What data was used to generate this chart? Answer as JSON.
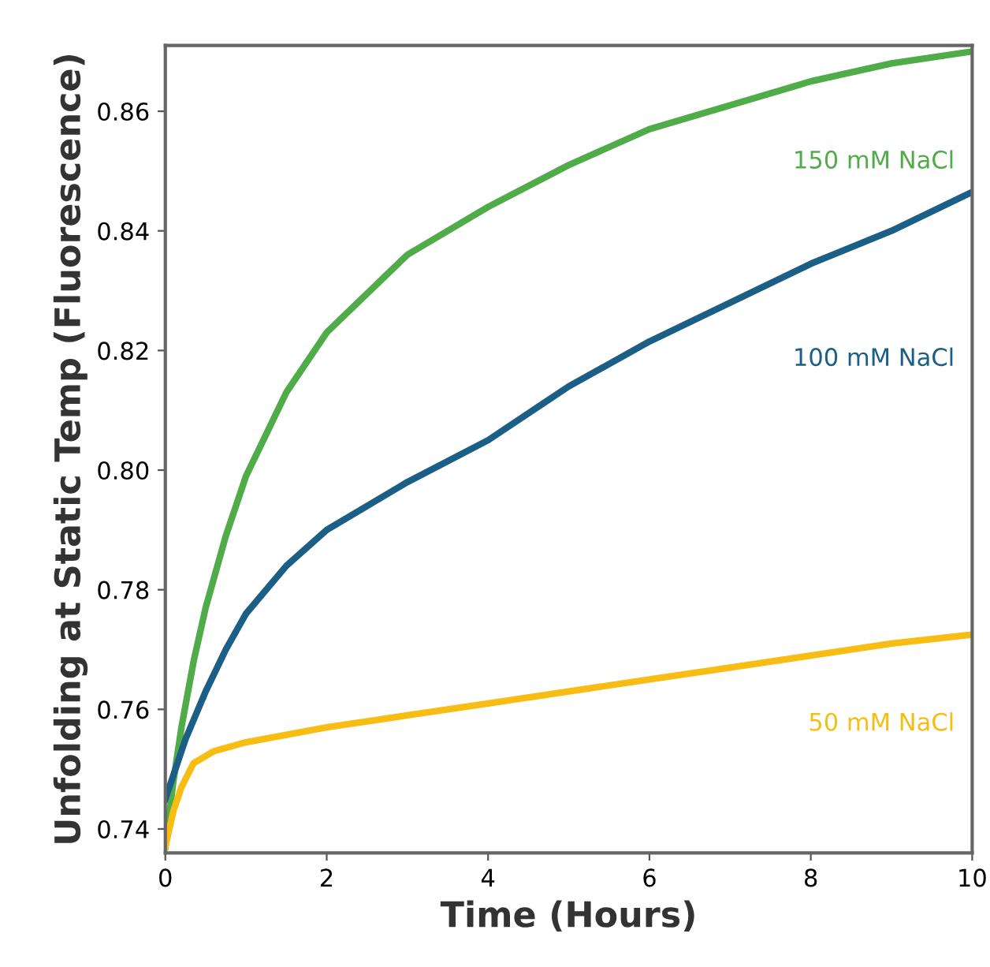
{
  "chart_data": {
    "type": "line",
    "xlabel": "Time (Hours)",
    "ylabel": "Unfolding at Static Temp (Fluorescence)",
    "xlim": [
      0,
      10
    ],
    "ylim": [
      0.736,
      0.871
    ],
    "xticks": [
      0,
      2,
      4,
      6,
      8,
      10
    ],
    "yticks": [
      {
        "value": 0.74,
        "label": "0.74"
      },
      {
        "value": 0.76,
        "label": "0.76"
      },
      {
        "value": 0.78,
        "label": "0.78"
      },
      {
        "value": 0.8,
        "label": "0.80"
      },
      {
        "value": 0.82,
        "label": "0.82"
      },
      {
        "value": 0.84,
        "label": "0.84"
      },
      {
        "value": 0.86,
        "label": "0.86"
      }
    ],
    "grid": false,
    "legend": false,
    "marker": "none",
    "line_style": "solid",
    "series": [
      {
        "name": "150 mM NaCl",
        "color": "#4fac48",
        "x": [
          0,
          0.1,
          0.2,
          0.35,
          0.5,
          0.75,
          1,
          1.5,
          2,
          3,
          4,
          5,
          6,
          7,
          8,
          9,
          10
        ],
        "values": [
          0.737,
          0.748,
          0.757,
          0.768,
          0.777,
          0.789,
          0.799,
          0.813,
          0.823,
          0.836,
          0.844,
          0.851,
          0.857,
          0.861,
          0.865,
          0.868,
          0.87
        ]
      },
      {
        "name": "100 mM NaCl",
        "color": "#1b5e86",
        "x": [
          0,
          0.1,
          0.25,
          0.5,
          0.75,
          1,
          1.5,
          2,
          3,
          4,
          5,
          6,
          7,
          8,
          9,
          10
        ],
        "values": [
          0.745,
          0.749,
          0.755,
          0.763,
          0.77,
          0.776,
          0.784,
          0.79,
          0.798,
          0.805,
          0.814,
          0.8215,
          0.828,
          0.8345,
          0.84,
          0.8465
        ]
      },
      {
        "name": "50 mM NaCl",
        "color": "#f7bd12",
        "x": [
          0,
          0.1,
          0.2,
          0.35,
          0.6,
          1,
          2,
          3,
          4,
          5,
          6,
          7,
          8,
          9,
          10
        ],
        "values": [
          0.737,
          0.743,
          0.747,
          0.751,
          0.753,
          0.7545,
          0.757,
          0.759,
          0.761,
          0.763,
          0.765,
          0.767,
          0.769,
          0.771,
          0.7725
        ]
      }
    ]
  }
}
